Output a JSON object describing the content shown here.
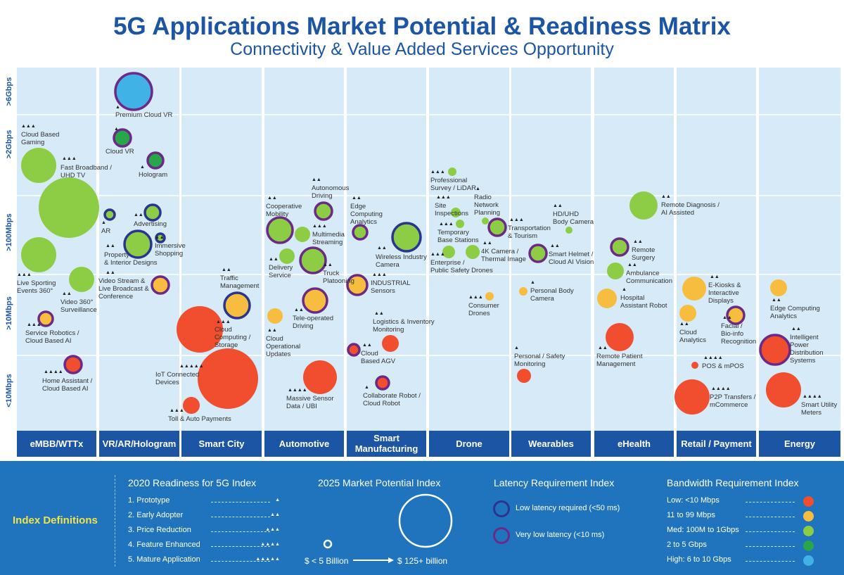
{
  "title": "5G Applications Market Potential & Readiness Matrix",
  "subtitle": "Connectivity & Value Added Services Opportunity",
  "chart_data": {
    "type": "scatter",
    "y_axis": [
      "<10Mbps",
      ">10Mbps",
      ">100Mbps",
      ">2Gbps",
      ">6Gbps"
    ],
    "categories": [
      "eMBB/WTTx",
      "VR/AR/Hologram",
      "Smart City",
      "Automotive",
      "Smart Manufacturing",
      "Drone",
      "Wearables",
      "eHealth",
      "Retail / Payment",
      "Energy"
    ],
    "bubbles": [
      {
        "label": "Cloud Based Gaming",
        "category": "eMBB/WTTx",
        "bandwidth": "Med",
        "latency": "none",
        "readiness": 3
      },
      {
        "label": "Fast Broadband / UHD TV",
        "category": "eMBB/WTTx",
        "bandwidth": "Med",
        "latency": "none",
        "readiness": 3
      },
      {
        "label": "Live Sporting Events 360°",
        "category": "eMBB/WTTx",
        "bandwidth": "Med",
        "latency": "none",
        "readiness": 3
      },
      {
        "label": "Video 360° Surveillance",
        "category": "eMBB/WTTx",
        "bandwidth": "Med",
        "latency": "none",
        "readiness": 2
      },
      {
        "label": "Service Robotics / Cloud Based AI",
        "category": "eMBB/WTTx",
        "bandwidth": "Low-mid",
        "latency": "very-low",
        "readiness": 3
      },
      {
        "label": "Home Assistant / Cloud Based AI",
        "category": "eMBB/WTTx",
        "bandwidth": "Low",
        "latency": "very-low",
        "readiness": 4
      },
      {
        "label": "Premium Cloud VR",
        "category": "VR/AR/Hologram",
        "bandwidth": "High",
        "latency": "very-low",
        "readiness": 1
      },
      {
        "label": "Cloud VR",
        "category": "VR/AR/Hologram",
        "bandwidth": "2-5G",
        "latency": "very-low",
        "readiness": 1
      },
      {
        "label": "Hologram",
        "category": "VR/AR/Hologram",
        "bandwidth": "2-5G",
        "latency": "very-low",
        "readiness": 1
      },
      {
        "label": "AR",
        "category": "VR/AR/Hologram",
        "bandwidth": "Med",
        "latency": "low",
        "readiness": 1
      },
      {
        "label": "Advertising",
        "category": "VR/AR/Hologram",
        "bandwidth": "Med",
        "latency": "low",
        "readiness": 2
      },
      {
        "label": "Property & Interior Designs",
        "category": "VR/AR/Hologram",
        "bandwidth": "Med",
        "latency": "low",
        "readiness": 2
      },
      {
        "label": "Immersive Shopping",
        "category": "VR/AR/Hologram",
        "bandwidth": "Med",
        "latency": "low",
        "readiness": 2
      },
      {
        "label": "Video Stream & Live Broadcast & Conference",
        "category": "VR/AR/Hologram",
        "bandwidth": "Low-mid",
        "latency": "very-low",
        "readiness": 2
      },
      {
        "label": "Traffic Management",
        "category": "Smart City",
        "bandwidth": "Low-mid",
        "latency": "low",
        "readiness": 2
      },
      {
        "label": "Cloud Computing / Storage",
        "category": "Smart City",
        "bandwidth": "Low",
        "latency": "none",
        "readiness": 3
      },
      {
        "label": "IoT Connected Devices",
        "category": "Smart City",
        "bandwidth": "Low",
        "latency": "none",
        "readiness": 5
      },
      {
        "label": "Toll & Auto Payments",
        "category": "Smart City",
        "bandwidth": "Low",
        "latency": "none",
        "readiness": 3
      },
      {
        "label": "Autonomous Driving",
        "category": "Automotive",
        "bandwidth": "Med",
        "latency": "very-low",
        "readiness": 2
      },
      {
        "label": "Cooperative Mobility",
        "category": "Automotive",
        "bandwidth": "Med",
        "latency": "very-low",
        "readiness": 2
      },
      {
        "label": "Multimedia Streaming",
        "category": "Automotive",
        "bandwidth": "Med",
        "latency": "none",
        "readiness": 3
      },
      {
        "label": "Delivery Service",
        "category": "Automotive",
        "bandwidth": "Med",
        "latency": "none",
        "readiness": 2
      },
      {
        "label": "Truck Platooning",
        "category": "Automotive",
        "bandwidth": "Med",
        "latency": "very-low",
        "readiness": 2
      },
      {
        "label": "Tele-operated Driving",
        "category": "Automotive",
        "bandwidth": "Low-mid",
        "latency": "very-low",
        "readiness": 2
      },
      {
        "label": "Cloud Operational Updates",
        "category": "Automotive",
        "bandwidth": "Low-mid",
        "latency": "none",
        "readiness": 2
      },
      {
        "label": "Massive Sensor Data / UBI",
        "category": "Automotive",
        "bandwidth": "Low",
        "latency": "none",
        "readiness": 4
      },
      {
        "label": "Edge Computing Analytics",
        "category": "Smart Manufacturing",
        "bandwidth": "Med",
        "latency": "very-low",
        "readiness": 2
      },
      {
        "label": "Wireless Industry Camera",
        "category": "Smart Manufacturing",
        "bandwidth": "Med",
        "latency": "low",
        "readiness": 2
      },
      {
        "label": "INDUSTRIAL Sensors",
        "category": "Smart Manufacturing",
        "bandwidth": "Low-mid",
        "latency": "very-low",
        "readiness": 3
      },
      {
        "label": "Logistics & Inventory Monitoring",
        "category": "Smart Manufacturing",
        "bandwidth": "Low",
        "latency": "none",
        "readiness": 2
      },
      {
        "label": "Cloud Based AGV",
        "category": "Smart Manufacturing",
        "bandwidth": "Low",
        "latency": "very-low",
        "readiness": 2
      },
      {
        "label": "Collaborate Robot / Cloud Robot",
        "category": "Smart Manufacturing",
        "bandwidth": "Low",
        "latency": "very-low",
        "readiness": 1
      },
      {
        "label": "Professional Survey / LiDAR",
        "category": "Drone",
        "bandwidth": "Med",
        "latency": "none",
        "readiness": 3
      },
      {
        "label": "Site Inspections",
        "category": "Drone",
        "bandwidth": "Med",
        "latency": "none",
        "readiness": 3
      },
      {
        "label": "Radio Network Planning",
        "category": "Drone",
        "bandwidth": "Med",
        "latency": "none",
        "readiness": 1
      },
      {
        "label": "Temporary Base Stations",
        "category": "Drone",
        "bandwidth": "Med",
        "latency": "none",
        "readiness": 3
      },
      {
        "label": "Transportation & Tourism",
        "category": "Drone",
        "bandwidth": "Med",
        "latency": "very-low",
        "readiness": 3
      },
      {
        "label": "Enterprise / Public Safety Drones",
        "category": "Drone",
        "bandwidth": "Med",
        "latency": "none",
        "readiness": 3
      },
      {
        "label": "4K Camera / Thermal Image",
        "category": "Drone",
        "bandwidth": "Med",
        "latency": "none",
        "readiness": 2
      },
      {
        "label": "Consumer Drones",
        "category": "Drone",
        "bandwidth": "Low-mid",
        "latency": "none",
        "readiness": 3
      },
      {
        "label": "HD/UHD Body Camera",
        "category": "Wearables",
        "bandwidth": "Med",
        "latency": "none",
        "readiness": 2
      },
      {
        "label": "Smart Helmet / Cloud AI Vision",
        "category": "Wearables",
        "bandwidth": "Med",
        "latency": "very-low",
        "readiness": 2
      },
      {
        "label": "Personal Body Camera",
        "category": "Wearables",
        "bandwidth": "Low-mid",
        "latency": "none",
        "readiness": 1
      },
      {
        "label": "Personal / Safety Monitoring",
        "category": "Wearables",
        "bandwidth": "Low",
        "latency": "none",
        "readiness": 1
      },
      {
        "label": "Remote Diagnosis / AI Assisted",
        "category": "eHealth",
        "bandwidth": "Med",
        "latency": "none",
        "readiness": 2
      },
      {
        "label": "Remote Surgery",
        "category": "eHealth",
        "bandwidth": "Med",
        "latency": "very-low",
        "readiness": 2
      },
      {
        "label": "Ambulance Communication",
        "category": "eHealth",
        "bandwidth": "Med",
        "latency": "none",
        "readiness": 2
      },
      {
        "label": "Hospital Assistant Robot",
        "category": "eHealth",
        "bandwidth": "Low-mid",
        "latency": "none",
        "readiness": 1
      },
      {
        "label": "Remote Patient Management",
        "category": "eHealth",
        "bandwidth": "Low",
        "latency": "none",
        "readiness": 2
      },
      {
        "label": "E-Kiosks & Interactive Displays",
        "category": "Retail / Payment",
        "bandwidth": "Low-mid",
        "latency": "none",
        "readiness": 2
      },
      {
        "label": "Cloud Analytics",
        "category": "Retail / Payment",
        "bandwidth": "Low-mid",
        "latency": "none",
        "readiness": 2
      },
      {
        "label": "Facial / Bio-info Recognition",
        "category": "Retail / Payment",
        "bandwidth": "Low-mid",
        "latency": "very-low",
        "readiness": 2
      },
      {
        "label": "POS & mPOS",
        "category": "Retail / Payment",
        "bandwidth": "Low",
        "latency": "none",
        "readiness": 4
      },
      {
        "label": "P2P Transfers / mCommerce",
        "category": "Retail / Payment",
        "bandwidth": "Low",
        "latency": "none",
        "readiness": 4
      },
      {
        "label": "Edge Computing Analytics",
        "category": "Energy",
        "bandwidth": "Low-mid",
        "latency": "none",
        "readiness": 2
      },
      {
        "label": "Intelligent Power Distribution Systems",
        "category": "Energy",
        "bandwidth": "Low",
        "latency": "very-low",
        "readiness": 2
      },
      {
        "label": "Smart Utility Meters",
        "category": "Energy",
        "bandwidth": "Low",
        "latency": "none",
        "readiness": 4
      }
    ]
  },
  "legend": {
    "index_definitions": "Index Definitions",
    "readiness_title": "2020 Readiness for 5G Index",
    "readiness": [
      {
        "label": "1. Prototype",
        "marks": "▲"
      },
      {
        "label": "2. Early Adopter",
        "marks": "▲▲"
      },
      {
        "label": "3. Price Reduction",
        "marks": "▲▲▲"
      },
      {
        "label": "4. Feature Enhanced",
        "marks": "▲▲▲▲"
      },
      {
        "label": "5. Mature Application",
        "marks": "▲▲▲▲▲"
      }
    ],
    "market_title": "2025 Market Potential Index",
    "market_small": "$ < 5 Billion",
    "market_large": "$ 125+ billion",
    "latency_title": "Latency Requirement Index",
    "latency": [
      {
        "label": "Low latency required (<50 ms)",
        "color": "#2a3590"
      },
      {
        "label": "Very low latency (<10 ms)",
        "color": "#6b2a86"
      }
    ],
    "bandwidth_title": "Bandwidth Requirement Index",
    "bandwidth": [
      {
        "label": "Low: <10 Mbps",
        "color": "#f04e2e"
      },
      {
        "label": "11 to 99 Mbps",
        "color": "#f7bd3e"
      },
      {
        "label": "Med: 100M to 1Gbps",
        "color": "#8dcd45"
      },
      {
        "label": "2 to 5 Gbps",
        "color": "#2aa64a"
      },
      {
        "label": "High: 6 to 10 Gbps",
        "color": "#41b2e6"
      }
    ]
  }
}
